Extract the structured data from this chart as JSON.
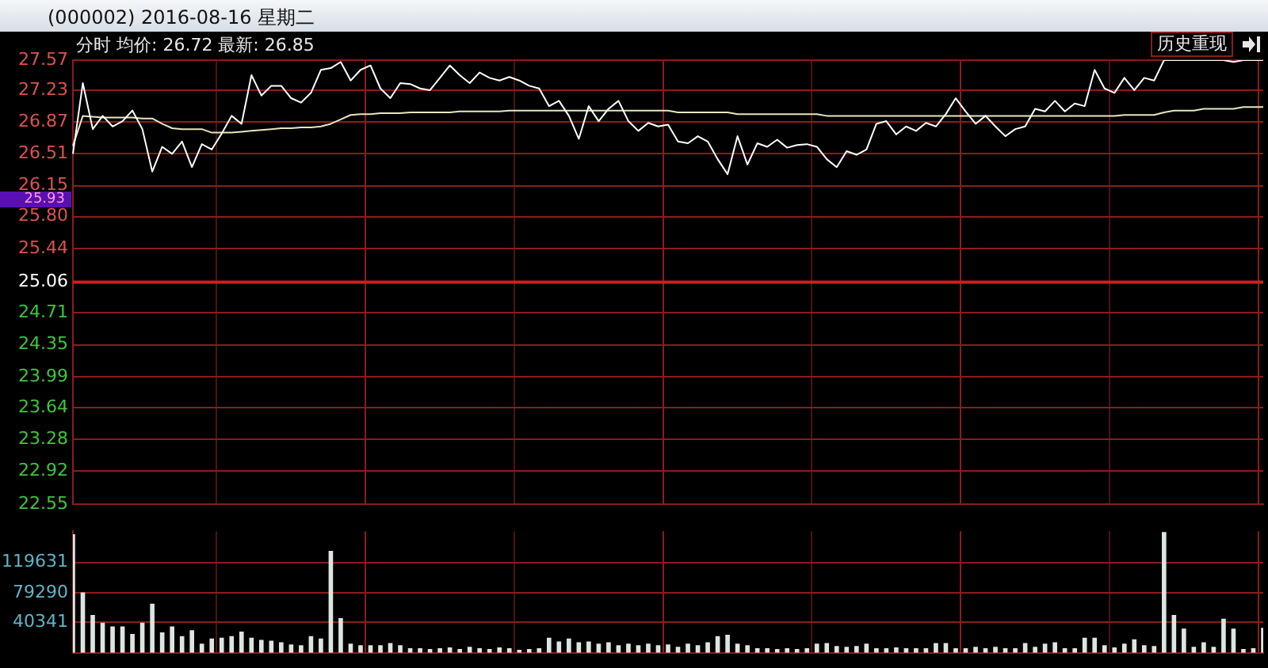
{
  "chart_data": [
    {
      "type": "line",
      "title": "(000002) 2016-08-16 星期二",
      "subtitle": "分时 均价: 26.72 最新: 26.85",
      "categories": [
        null,
        null,
        null,
        null,
        null,
        null,
        null,
        null,
        null,
        null,
        null,
        null,
        null,
        null,
        null,
        null,
        null,
        null,
        null,
        null,
        null,
        null,
        null,
        null,
        null,
        null,
        null,
        null,
        null,
        null,
        null,
        null,
        null,
        null,
        null,
        null,
        null,
        null,
        null,
        null,
        null,
        null,
        null,
        null,
        null,
        null,
        null,
        null,
        null,
        null,
        null,
        null,
        null,
        null,
        null,
        null,
        null,
        null,
        null,
        null,
        null,
        null,
        null,
        null,
        null,
        null,
        null,
        null,
        null,
        null,
        null,
        null,
        null,
        null,
        null,
        null,
        null,
        null,
        null,
        null,
        null,
        null,
        null,
        null,
        null,
        null,
        null,
        null,
        null,
        null,
        null,
        null,
        null,
        null,
        null,
        null,
        null,
        null,
        null,
        null,
        null,
        null,
        null,
        null,
        null,
        null,
        null,
        null,
        null,
        null,
        null,
        null,
        null,
        null,
        null,
        null,
        null,
        null,
        null,
        null,
        null
      ],
      "series": [
        {
          "color": "#ffffff",
          "values": [
            26.51,
            27.31,
            26.79,
            26.94,
            26.82,
            26.88,
            27.0,
            26.79,
            26.31,
            26.59,
            26.51,
            26.65,
            26.36,
            26.62,
            26.56,
            26.74,
            26.94,
            26.85,
            27.4,
            27.17,
            27.28,
            27.28,
            27.14,
            27.09,
            27.2,
            27.46,
            27.48,
            27.55,
            27.34,
            27.46,
            27.51,
            27.25,
            27.14,
            27.31,
            27.3,
            27.25,
            27.23,
            27.37,
            27.51,
            27.4,
            27.31,
            27.43,
            27.37,
            27.34,
            27.38,
            27.34,
            27.28,
            27.25,
            27.05,
            27.11,
            26.94,
            26.68,
            27.05,
            26.88,
            27.02,
            27.11,
            26.88,
            26.77,
            26.86,
            26.82,
            26.84,
            26.65,
            26.63,
            26.71,
            26.65,
            26.45,
            26.28,
            26.71,
            26.39,
            26.63,
            26.59,
            26.67,
            26.58,
            26.61,
            26.62,
            26.59,
            26.45,
            26.36,
            26.54,
            26.5,
            26.56,
            26.85,
            26.88,
            26.73,
            26.82,
            26.77,
            26.86,
            26.82,
            26.96,
            27.14,
            26.99,
            26.85,
            26.94,
            26.82,
            26.71,
            26.79,
            26.82,
            27.02,
            26.99,
            27.11,
            26.99,
            27.08,
            27.05,
            27.46,
            27.25,
            27.2,
            27.37,
            27.23,
            27.37,
            27.34,
            27.57,
            27.57,
            27.57,
            27.57,
            27.57,
            27.57,
            27.57,
            27.55,
            27.57,
            27.57,
            27.57
          ]
        },
        {
          "color": "#e6e6c0",
          "values": [
            26.6,
            26.94,
            26.93,
            26.92,
            26.92,
            26.92,
            26.92,
            26.91,
            26.91,
            26.85,
            26.8,
            26.79,
            26.79,
            26.79,
            26.75,
            26.75,
            26.75,
            26.76,
            26.77,
            26.78,
            26.79,
            26.8,
            26.8,
            26.81,
            26.81,
            26.82,
            26.85,
            26.9,
            26.95,
            26.96,
            26.96,
            26.97,
            26.97,
            26.97,
            26.98,
            26.98,
            26.98,
            26.98,
            26.98,
            26.99,
            26.99,
            26.99,
            26.99,
            26.99,
            27.0,
            27.0,
            27.0,
            27.0,
            27.0,
            27.0,
            27.0,
            27.0,
            27.0,
            27.0,
            27.0,
            27.0,
            27.0,
            27.0,
            27.0,
            27.0,
            27.0,
            26.98,
            26.98,
            26.98,
            26.98,
            26.98,
            26.98,
            26.96,
            26.96,
            26.96,
            26.96,
            26.96,
            26.96,
            26.96,
            26.96,
            26.96,
            26.94,
            26.94,
            26.94,
            26.94,
            26.94,
            26.94,
            26.94,
            26.94,
            26.94,
            26.94,
            26.94,
            26.94,
            26.94,
            26.94,
            26.94,
            26.94,
            26.94,
            26.94,
            26.94,
            26.94,
            26.94,
            26.94,
            26.94,
            26.94,
            26.94,
            26.94,
            26.94,
            26.94,
            26.94,
            26.94,
            26.95,
            26.95,
            26.95,
            26.95,
            26.98,
            27.0,
            27.0,
            27.0,
            27.02,
            27.02,
            27.02,
            27.02,
            27.04,
            27.04,
            27.04
          ]
        }
      ],
      "ylim": [
        22.55,
        27.57
      ],
      "yticks": [
        22.55,
        22.92,
        23.28,
        23.64,
        23.99,
        24.35,
        24.71,
        25.06,
        25.44,
        {
          "value": 25.8,
          "label": "25.80"
        },
        26.15,
        26.51,
        26.87,
        27.23,
        27.57
      ],
      "ref_lines": [
        {
          "axis": "y",
          "value": 25.06,
          "color": "#d21e1e"
        }
      ],
      "annotations": [
        "历史重现",
        "25.93"
      ],
      "grid": true,
      "marker": "none",
      "legend": false
    },
    {
      "type": "bar",
      "categories": [
        null,
        null,
        null,
        null,
        null,
        null,
        null,
        null,
        null,
        null,
        null,
        null,
        null,
        null,
        null,
        null,
        null,
        null,
        null,
        null,
        null,
        null,
        null,
        null,
        null,
        null,
        null,
        null,
        null,
        null,
        null,
        null,
        null,
        null,
        null,
        null,
        null,
        null,
        null,
        null,
        null,
        null,
        null,
        null,
        null,
        null,
        null,
        null,
        null,
        null,
        null,
        null,
        null,
        null,
        null,
        null,
        null,
        null,
        null,
        null,
        null,
        null,
        null,
        null,
        null,
        null,
        null,
        null,
        null,
        null,
        null,
        null,
        null,
        null,
        null,
        null,
        null,
        null,
        null,
        null,
        null,
        null,
        null,
        null,
        null,
        null,
        null,
        null,
        null,
        null,
        null,
        null,
        null,
        null,
        null,
        null,
        null,
        null,
        null,
        null,
        null,
        null,
        null,
        null,
        null,
        null,
        null,
        null,
        null,
        null,
        null,
        null,
        null,
        null,
        null,
        null,
        null,
        null,
        null,
        null,
        null
      ],
      "values": [
        157000,
        80000,
        50000,
        40000,
        35000,
        35000,
        25000,
        40000,
        65000,
        27000,
        35000,
        22000,
        30000,
        12000,
        19000,
        20000,
        22000,
        28000,
        20000,
        17000,
        16000,
        14000,
        11000,
        10000,
        22000,
        19000,
        135000,
        46000,
        12000,
        10000,
        10000,
        10000,
        13000,
        10000,
        6000,
        6000,
        5000,
        6000,
        7000,
        5000,
        8000,
        6000,
        5000,
        7000,
        6000,
        4000,
        5000,
        6000,
        20000,
        15000,
        19000,
        14000,
        15000,
        12000,
        14000,
        10000,
        12000,
        10000,
        12000,
        10000,
        11000,
        8000,
        12000,
        10000,
        14000,
        22000,
        24000,
        12000,
        10000,
        6000,
        6000,
        5000,
        6000,
        5000,
        6000,
        12000,
        13000,
        9000,
        8000,
        9000,
        12000,
        6000,
        6000,
        7000,
        6000,
        6000,
        6000,
        13000,
        13000,
        6000,
        6000,
        8000,
        6000,
        8000,
        6000,
        6000,
        13000,
        8000,
        12000,
        14000,
        6000,
        6000,
        20000,
        20000,
        10000,
        7000,
        12000,
        18000,
        10000,
        9000,
        160000,
        50000,
        32000,
        8000,
        14000,
        8000,
        45000,
        32000,
        5000,
        6000,
        33000
      ],
      "color": "#dce6e0",
      "ylim": [
        0,
        161000
      ],
      "yticks": [
        40341,
        79290,
        119631
      ],
      "grid": true,
      "legend": false
    }
  ]
}
